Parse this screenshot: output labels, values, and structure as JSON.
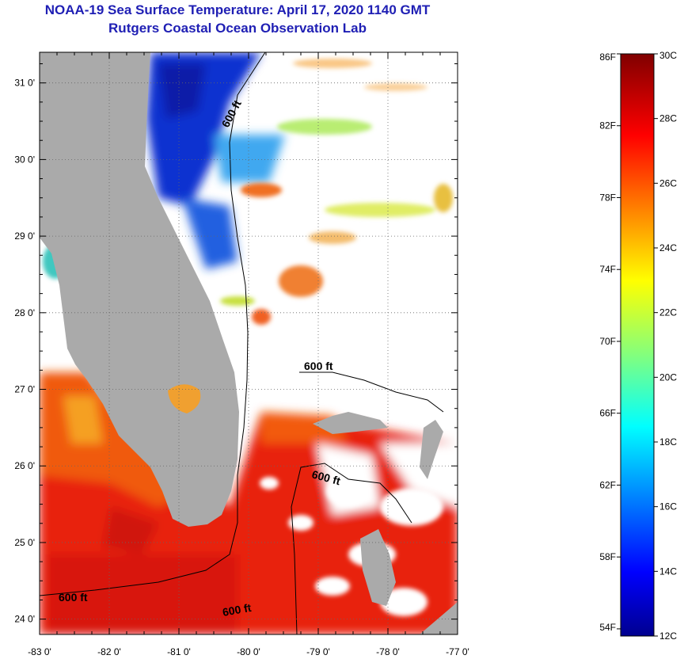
{
  "title": {
    "line1": "NOAA-19 Sea Surface Temperature:  April 17, 2020 1140 GMT",
    "line2": "Rutgers Coastal Ocean Observation Lab"
  },
  "axes": {
    "lon_labels": [
      "-83 0'",
      "-82 0'",
      "-81 0'",
      "-80 0'",
      "-79 0'",
      "-78 0'",
      "-77 0'"
    ],
    "lon_values": [
      -83,
      -82,
      -81,
      -80,
      -79,
      -78,
      -77
    ],
    "lat_labels": [
      "31 0'",
      "30 0'",
      "29 0'",
      "28 0'",
      "27 0'",
      "26 0'",
      "25 0'",
      "24 0'"
    ],
    "lat_values": [
      31,
      30,
      29,
      28,
      27,
      26,
      25,
      24
    ],
    "lon_range": [
      -83,
      -77
    ],
    "lat_range": [
      23.8,
      31.4
    ]
  },
  "contour": {
    "depth_label": "600 ft"
  },
  "colorbar": {
    "celsius_labels": [
      "30C",
      "28C",
      "26C",
      "24C",
      "22C",
      "20C",
      "18C",
      "16C",
      "14C",
      "12C"
    ],
    "celsius_values": [
      30,
      28,
      26,
      24,
      22,
      20,
      18,
      16,
      14,
      12
    ],
    "fahrenheit_labels": [
      "86F",
      "82F",
      "78F",
      "74F",
      "70F",
      "66F",
      "62F",
      "58F",
      "54F"
    ],
    "fahrenheit_values": [
      86,
      82,
      78,
      74,
      70,
      66,
      62,
      58,
      54
    ],
    "range_c": [
      12,
      30
    ]
  },
  "colors": {
    "title": "#1f1fb4",
    "land": "#aaaaaa",
    "no_data": "#ffffff",
    "warm": "#e8200a",
    "cold": "#1030d0"
  }
}
